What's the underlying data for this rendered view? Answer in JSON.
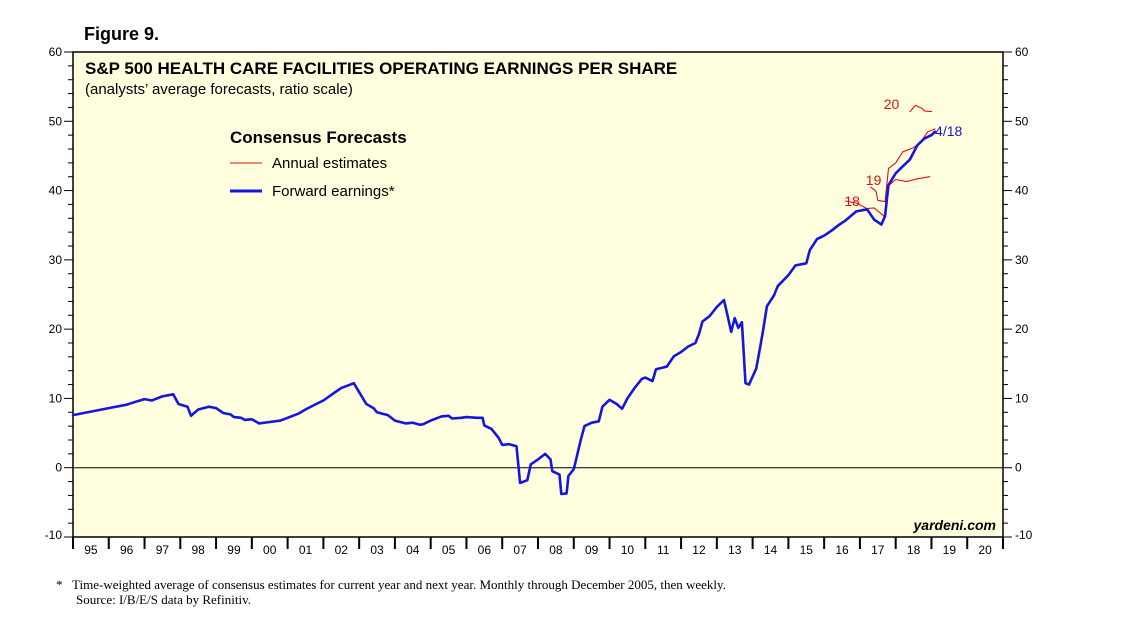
{
  "figure_label": "Figure 9.",
  "footnote": {
    "marker": "*",
    "note": "Time-weighted average of consensus estimates for current year and next year. Monthly through December 2005, then weekly.",
    "source": "Source: I/B/E/S data by Refinitiv."
  },
  "colors": {
    "plot_bg": "#ffffe0",
    "forward": "#1515e0",
    "annual": "#e01010"
  },
  "chart_data": {
    "type": "line",
    "title": "S&P 500 HEALTH CARE FACILITIES OPERATING EARNINGS PER SHARE",
    "subtitle": "(analysts’ average forecasts, ratio scale)",
    "watermark": "yardeni.com",
    "ylim": [
      -10,
      60
    ],
    "yticks": [
      -10,
      0,
      10,
      20,
      30,
      40,
      50,
      60
    ],
    "xlim": [
      1995,
      2021
    ],
    "x_tick_labels": [
      "95",
      "96",
      "97",
      "98",
      "99",
      "00",
      "01",
      "02",
      "03",
      "04",
      "05",
      "06",
      "07",
      "08",
      "09",
      "10",
      "11",
      "12",
      "13",
      "14",
      "15",
      "16",
      "17",
      "18",
      "19",
      "20"
    ],
    "legend": {
      "title": "Consensus Forecasts",
      "position": "top-left",
      "entries": [
        {
          "name": "Annual estimates",
          "color": "#e01010"
        },
        {
          "name": "Forward earnings*",
          "color": "#1515e0"
        }
      ]
    },
    "annotations": [
      {
        "text": "18",
        "x": 2017.0,
        "y": 38.5,
        "color": "#e01010"
      },
      {
        "text": "19",
        "x": 2017.6,
        "y": 41.5,
        "color": "#e01010"
      },
      {
        "text": "20",
        "x": 2018.1,
        "y": 52.5,
        "color": "#e01010"
      },
      {
        "text": "4/18",
        "x": 2019.1,
        "y": 48.6,
        "color": "#1515e0"
      }
    ],
    "series": [
      {
        "name": "Forward earnings*",
        "color": "#1515e0",
        "points": [
          [
            1995.0,
            7.6
          ],
          [
            1995.5,
            8.1
          ],
          [
            1996.0,
            8.6
          ],
          [
            1996.5,
            9.1
          ],
          [
            1996.8,
            9.6
          ],
          [
            1997.0,
            9.9
          ],
          [
            1997.2,
            9.7
          ],
          [
            1997.5,
            10.3
          ],
          [
            1997.8,
            10.6
          ],
          [
            1997.95,
            9.2
          ],
          [
            1998.2,
            8.8
          ],
          [
            1998.3,
            7.5
          ],
          [
            1998.5,
            8.4
          ],
          [
            1998.8,
            8.8
          ],
          [
            1999.0,
            8.6
          ],
          [
            1999.2,
            7.9
          ],
          [
            1999.4,
            7.7
          ],
          [
            1999.5,
            7.3
          ],
          [
            1999.7,
            7.2
          ],
          [
            1999.8,
            6.9
          ],
          [
            2000.0,
            7.0
          ],
          [
            2000.2,
            6.4
          ],
          [
            2000.5,
            6.6
          ],
          [
            2000.8,
            6.8
          ],
          [
            2001.0,
            7.2
          ],
          [
            2001.3,
            7.8
          ],
          [
            2001.5,
            8.4
          ],
          [
            2001.8,
            9.2
          ],
          [
            2002.0,
            9.7
          ],
          [
            2002.3,
            10.8
          ],
          [
            2002.5,
            11.5
          ],
          [
            2002.7,
            11.9
          ],
          [
            2002.85,
            12.2
          ],
          [
            2003.0,
            10.9
          ],
          [
            2003.2,
            9.2
          ],
          [
            2003.4,
            8.6
          ],
          [
            2003.5,
            8.0
          ],
          [
            2003.8,
            7.6
          ],
          [
            2004.0,
            6.8
          ],
          [
            2004.3,
            6.4
          ],
          [
            2004.5,
            6.5
          ],
          [
            2004.7,
            6.2
          ],
          [
            2004.8,
            6.3
          ],
          [
            2005.0,
            6.8
          ],
          [
            2005.3,
            7.4
          ],
          [
            2005.5,
            7.5
          ],
          [
            2005.6,
            7.1
          ],
          [
            2005.85,
            7.2
          ],
          [
            2006.0,
            7.3
          ],
          [
            2006.3,
            7.2
          ],
          [
            2006.45,
            7.2
          ],
          [
            2006.5,
            6.1
          ],
          [
            2006.7,
            5.6
          ],
          [
            2006.9,
            4.3
          ],
          [
            2007.0,
            3.3
          ],
          [
            2007.2,
            3.4
          ],
          [
            2007.4,
            3.1
          ],
          [
            2007.5,
            -2.2
          ],
          [
            2007.7,
            -1.8
          ],
          [
            2007.8,
            0.5
          ],
          [
            2008.0,
            1.2
          ],
          [
            2008.2,
            2.0
          ],
          [
            2008.35,
            1.2
          ],
          [
            2008.4,
            -0.5
          ],
          [
            2008.6,
            -1.0
          ],
          [
            2008.65,
            -3.8
          ],
          [
            2008.8,
            -3.7
          ],
          [
            2008.85,
            -1.2
          ],
          [
            2009.0,
            -0.2
          ],
          [
            2009.1,
            1.9
          ],
          [
            2009.2,
            4.1
          ],
          [
            2009.3,
            6.0
          ],
          [
            2009.5,
            6.5
          ],
          [
            2009.7,
            6.7
          ],
          [
            2009.8,
            8.8
          ],
          [
            2010.0,
            9.8
          ],
          [
            2010.2,
            9.2
          ],
          [
            2010.35,
            8.5
          ],
          [
            2010.5,
            10.0
          ],
          [
            2010.7,
            11.5
          ],
          [
            2010.9,
            12.8
          ],
          [
            2011.0,
            13.0
          ],
          [
            2011.2,
            12.5
          ],
          [
            2011.3,
            14.2
          ],
          [
            2011.6,
            14.6
          ],
          [
            2011.8,
            16.1
          ],
          [
            2012.0,
            16.7
          ],
          [
            2012.2,
            17.5
          ],
          [
            2012.4,
            18.0
          ],
          [
            2012.5,
            19.3
          ],
          [
            2012.6,
            21.1
          ],
          [
            2012.8,
            21.9
          ],
          [
            2013.0,
            23.2
          ],
          [
            2013.2,
            24.2
          ],
          [
            2013.4,
            19.6
          ],
          [
            2013.5,
            21.6
          ],
          [
            2013.6,
            20.2
          ],
          [
            2013.7,
            21.0
          ],
          [
            2013.8,
            12.2
          ],
          [
            2013.9,
            12.0
          ],
          [
            2014.1,
            14.3
          ],
          [
            2014.2,
            17.1
          ],
          [
            2014.3,
            20.0
          ],
          [
            2014.4,
            23.3
          ],
          [
            2014.6,
            24.9
          ],
          [
            2014.7,
            26.2
          ],
          [
            2015.0,
            27.8
          ],
          [
            2015.2,
            29.2
          ],
          [
            2015.5,
            29.5
          ],
          [
            2015.6,
            31.4
          ],
          [
            2015.8,
            33.0
          ],
          [
            2016.0,
            33.5
          ],
          [
            2016.2,
            34.2
          ],
          [
            2016.4,
            35.0
          ],
          [
            2016.6,
            35.7
          ],
          [
            2016.9,
            37.0
          ],
          [
            2017.2,
            37.3
          ],
          [
            2017.4,
            35.8
          ],
          [
            2017.6,
            35.1
          ],
          [
            2017.7,
            36.3
          ],
          [
            2017.8,
            40.8
          ],
          [
            2018.0,
            42.5
          ],
          [
            2018.2,
            43.5
          ],
          [
            2018.4,
            44.5
          ],
          [
            2018.6,
            46.5
          ],
          [
            2018.8,
            47.5
          ],
          [
            2019.0,
            48.0
          ],
          [
            2019.1,
            48.5
          ]
        ]
      },
      {
        "name": "Annual estimate 18",
        "color": "#e01010",
        "points": [
          [
            2016.6,
            38.5
          ],
          [
            2016.9,
            38.2
          ],
          [
            2017.2,
            37.4
          ],
          [
            2017.4,
            37.5
          ],
          [
            2017.7,
            36.2
          ],
          [
            2017.8,
            40.7
          ],
          [
            2018.0,
            41.6
          ],
          [
            2018.3,
            41.3
          ],
          [
            2018.6,
            41.7
          ],
          [
            2018.95,
            42.0
          ]
        ]
      },
      {
        "name": "Annual estimate 19",
        "color": "#e01010",
        "points": [
          [
            2017.3,
            40.5
          ],
          [
            2017.45,
            39.9
          ],
          [
            2017.5,
            38.6
          ],
          [
            2017.7,
            38.4
          ],
          [
            2017.8,
            43.2
          ],
          [
            2018.0,
            44.0
          ],
          [
            2018.2,
            45.6
          ],
          [
            2018.5,
            46.2
          ],
          [
            2018.7,
            47.0
          ],
          [
            2018.9,
            48.5
          ],
          [
            2019.1,
            48.9
          ]
        ]
      },
      {
        "name": "Annual estimate 20",
        "color": "#e01010",
        "points": [
          [
            2018.4,
            51.4
          ],
          [
            2018.55,
            52.3
          ],
          [
            2018.75,
            51.8
          ],
          [
            2018.8,
            51.5
          ],
          [
            2019.0,
            51.4
          ]
        ]
      }
    ]
  }
}
